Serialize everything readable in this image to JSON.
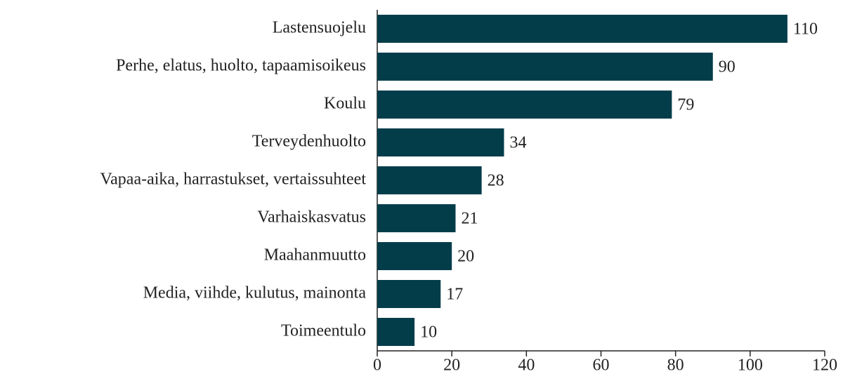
{
  "chart_data": {
    "type": "bar",
    "orientation": "horizontal",
    "categories": [
      "Lastensuojelu",
      "Perhe, elatus, huolto, tapaamisoikeus",
      "Koulu",
      "Terveydenhuolto",
      "Vapaa-aika, harrastukset, vertaissuhteet",
      "Varhaiskasvatus",
      "Maahanmuutto",
      "Media, viihde, kulutus, mainonta",
      "Toimeentulo"
    ],
    "values": [
      110,
      90,
      79,
      34,
      28,
      21,
      20,
      17,
      10
    ],
    "color": "#033d4a",
    "xlim": [
      0,
      120
    ],
    "xticks": [
      0,
      20,
      40,
      60,
      80,
      100,
      120
    ],
    "grid": false
  }
}
